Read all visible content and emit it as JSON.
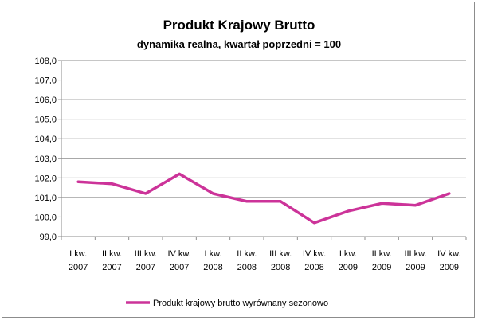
{
  "chart_data": {
    "type": "line",
    "title": "Produkt Krajowy Brutto",
    "subtitle": "dynamika realna, kwartał poprzedni = 100",
    "categories": [
      [
        "I kw.",
        "2007"
      ],
      [
        "II kw.",
        "2007"
      ],
      [
        "III kw.",
        "2007"
      ],
      [
        "IV kw.",
        "2007"
      ],
      [
        "I kw.",
        "2008"
      ],
      [
        "II kw.",
        "2008"
      ],
      [
        "III kw.",
        "2008"
      ],
      [
        "IV kw.",
        "2008"
      ],
      [
        "I kw.",
        "2009"
      ],
      [
        "II kw.",
        "2009"
      ],
      [
        "III kw.",
        "2009"
      ],
      [
        "IV kw.",
        "2009"
      ]
    ],
    "series": [
      {
        "name": "Produkt krajowy brutto wyrównany sezonowo",
        "values": [
          101.8,
          101.7,
          101.2,
          102.2,
          101.2,
          100.8,
          100.8,
          99.7,
          100.3,
          100.7,
          100.6,
          101.2
        ],
        "color": "#cc3399"
      }
    ],
    "yticks": [
      "108,0",
      "107,0",
      "106,0",
      "105,0",
      "104,0",
      "103,0",
      "102,0",
      "101,0",
      "100,0",
      "99,0"
    ],
    "ylim": [
      99,
      108
    ],
    "grid": true,
    "legend": "bottom",
    "gridColor": "#8c8c8c",
    "axisColor": "#8c8c8c"
  }
}
